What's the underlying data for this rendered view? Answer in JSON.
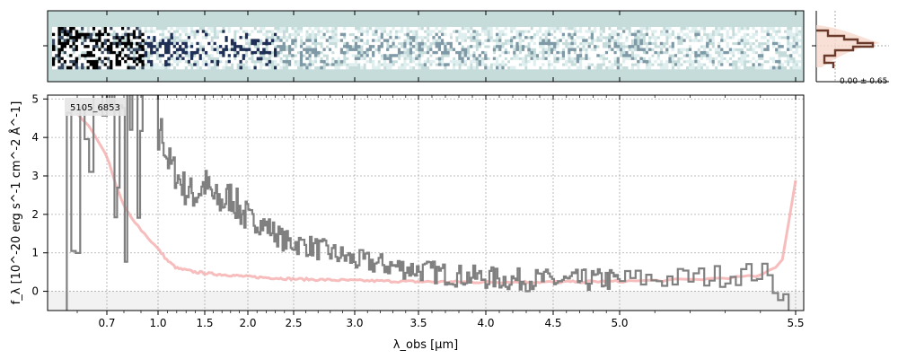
{
  "chart_data": {
    "type": "line",
    "object_label": "5105_6853",
    "xlabel": "λ_obs [μm]",
    "ylabel": "f_λ [10^-20 erg s^-1 cm^-2 Å^-1]",
    "xlim": [
      0.5,
      5.52
    ],
    "ylim": [
      -0.5,
      5.1
    ],
    "x_scale": "reciprocal-like (compressed at long wavelength)",
    "x_ticks": [
      0.7,
      1.0,
      1.5,
      2.0,
      2.5,
      3.0,
      3.5,
      4.0,
      4.5,
      5.0,
      5.5
    ],
    "x_tick_labels": [
      "0.7",
      "1.0",
      "1.5",
      "2.0",
      "2.5",
      "3.0",
      "3.5",
      "4.0",
      "4.5",
      "5.0",
      "5.5"
    ],
    "y_ticks": [
      0,
      1,
      2,
      3,
      4,
      5
    ],
    "y_tick_labels": [
      "0",
      "1",
      "2",
      "3",
      "4",
      "5"
    ],
    "grid": true,
    "histogram_label": "0.00 ± 0.65",
    "colors": {
      "spectrum": "#808080",
      "model": "#f4a6a6",
      "twod_background": "#c5dcdb",
      "twod_dark": "#1a2a40",
      "hist_line": "#6b3a2a",
      "hist_fill": "#f8d8cc"
    },
    "series": [
      {
        "x": [
          0.55,
          0.6,
          0.65,
          0.7,
          0.75,
          0.8,
          0.85,
          0.9,
          0.95,
          1.0,
          1.1,
          1.2,
          1.3,
          1.4,
          1.5,
          1.6,
          1.7,
          1.8,
          1.9,
          2.0,
          2.2,
          2.4,
          2.6,
          2.8,
          3.0,
          3.2,
          3.4,
          3.6,
          3.8,
          4.0,
          4.2,
          4.4,
          4.6,
          4.8,
          5.0,
          5.2,
          5.4,
          5.48
        ],
        "y": [
          1.5,
          3.0,
          4.5,
          4.2,
          3.5,
          3.5,
          4.8,
          4.0,
          5.0,
          4.5,
          3.4,
          3.0,
          2.6,
          2.5,
          2.8,
          2.4,
          2.3,
          2.5,
          2.1,
          1.9,
          1.7,
          1.3,
          1.2,
          1.0,
          0.8,
          0.7,
          0.6,
          0.5,
          0.4,
          0.35,
          0.3,
          0.3,
          0.25,
          0.3,
          0.3,
          0.35,
          0.5,
          -0.3
        ]
      },
      {
        "x": [
          0.6,
          0.65,
          0.7,
          0.75,
          0.8,
          0.9,
          1.0,
          1.1,
          1.2,
          1.4,
          1.6,
          1.8,
          2.0,
          2.5,
          3.0,
          3.5,
          4.0,
          4.5,
          5.0,
          5.2,
          5.4,
          5.46,
          5.5
        ],
        "y": [
          4.6,
          4.2,
          3.5,
          2.8,
          2.2,
          1.6,
          1.1,
          0.8,
          0.6,
          0.5,
          0.45,
          0.42,
          0.38,
          0.32,
          0.28,
          0.25,
          0.24,
          0.24,
          0.26,
          0.3,
          0.4,
          0.7,
          2.9
        ]
      }
    ]
  }
}
